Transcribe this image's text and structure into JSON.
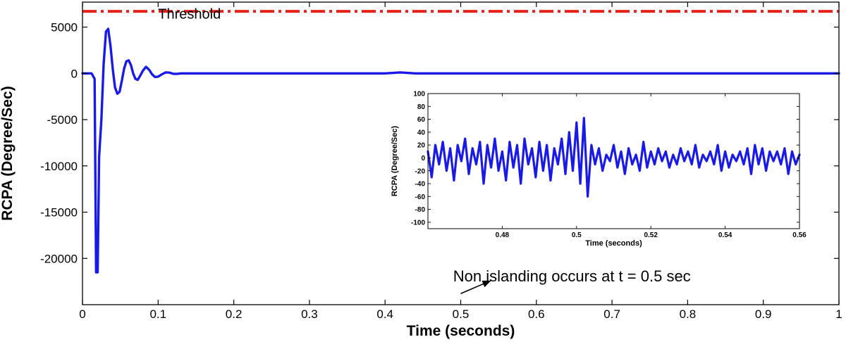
{
  "chart_data": [
    {
      "type": "line",
      "xlabel": "Time (seconds)",
      "ylabel": "RCPA (Degree/Sec)",
      "xlim": [
        0,
        1
      ],
      "ylim": [
        -25000,
        7700
      ],
      "xticks": [
        0,
        0.1,
        0.2,
        0.3,
        0.4,
        0.5,
        0.6,
        0.7,
        0.8,
        0.9,
        1
      ],
      "xtick_labels": [
        "0",
        "0.1",
        "0.2",
        "0.3",
        "0.4",
        "0.5",
        "0.6",
        "0.7",
        "0.8",
        "0.9",
        "1"
      ],
      "yticks": [
        5000,
        0,
        -5000,
        -10000,
        -15000,
        -20000
      ],
      "ytick_labels": [
        "5000",
        "0",
        "-5000",
        "-10000",
        "-15000",
        "-20000"
      ],
      "grid": false,
      "series": [
        {
          "name": "Threshold",
          "color": "#e8201a",
          "style": "dash-dot",
          "x": [
            0,
            1
          ],
          "y": [
            6700,
            6700
          ]
        },
        {
          "color": "#1a1ae6",
          "style": "solid",
          "x": [
            0,
            0.012,
            0.016,
            0.018,
            0.02,
            0.022,
            0.025,
            0.028,
            0.031,
            0.034,
            0.037,
            0.04,
            0.043,
            0.046,
            0.049,
            0.052,
            0.055,
            0.058,
            0.061,
            0.064,
            0.067,
            0.07,
            0.073,
            0.076,
            0.08,
            0.084,
            0.088,
            0.092,
            0.096,
            0.1,
            0.105,
            0.11,
            0.115,
            0.12,
            0.125,
            0.13,
            0.14,
            0.15,
            0.2,
            0.3,
            0.4,
            0.42,
            0.44,
            0.5,
            0.6,
            0.7,
            0.8,
            0.9,
            1.0
          ],
          "y": [
            0,
            0,
            -600,
            -21500,
            -21500,
            -9000,
            -5000,
            1000,
            4500,
            4800,
            3000,
            500,
            -1500,
            -2200,
            -2000,
            -800,
            500,
            1300,
            1400,
            900,
            0,
            -600,
            -700,
            -300,
            300,
            700,
            400,
            -100,
            -400,
            -350,
            -100,
            100,
            80,
            -50,
            -60,
            0,
            0,
            0,
            0,
            0,
            0,
            100,
            0,
            0,
            0,
            0,
            0,
            0,
            0
          ]
        }
      ],
      "annotations": [
        {
          "text": "Threshold",
          "x": 0.1,
          "y": 5900
        },
        {
          "text": "Non islanding occurs at t = 0.5 sec",
          "x": 0.49,
          "y": -22500
        }
      ],
      "arrow": {
        "from": [
          0.5,
          -23800
        ],
        "to": [
          0.54,
          -22400
        ]
      }
    },
    {
      "type": "line",
      "xlabel": "Time (seconds)",
      "ylabel": "RCPA (Degree/Sec)",
      "xlim": [
        0.46,
        0.56
      ],
      "ylim": [
        -110,
        100
      ],
      "xticks": [
        0.48,
        0.5,
        0.52,
        0.54,
        0.56
      ],
      "xtick_labels": [
        "0.48",
        "0.5",
        "0.52",
        "0.54",
        "0.56"
      ],
      "yticks": [
        100,
        80,
        60,
        40,
        20,
        0,
        -20,
        -40,
        -60,
        -80,
        -100
      ],
      "ytick_labels": [
        "100",
        "80",
        "60",
        "40",
        "20",
        "0",
        "-20",
        "-40",
        "-60",
        "-80",
        "-100"
      ],
      "grid": false,
      "series": [
        {
          "color": "#1a1ae6",
          "x": [
            0.46,
            0.461,
            0.462,
            0.463,
            0.464,
            0.465,
            0.466,
            0.467,
            0.468,
            0.469,
            0.47,
            0.471,
            0.472,
            0.473,
            0.474,
            0.475,
            0.476,
            0.477,
            0.478,
            0.479,
            0.48,
            0.481,
            0.482,
            0.483,
            0.484,
            0.485,
            0.486,
            0.487,
            0.488,
            0.489,
            0.49,
            0.491,
            0.492,
            0.493,
            0.494,
            0.495,
            0.496,
            0.497,
            0.498,
            0.499,
            0.5,
            0.501,
            0.502,
            0.503,
            0.504,
            0.505,
            0.506,
            0.507,
            0.508,
            0.509,
            0.51,
            0.511,
            0.512,
            0.513,
            0.514,
            0.515,
            0.516,
            0.517,
            0.518,
            0.519,
            0.52,
            0.521,
            0.522,
            0.523,
            0.524,
            0.525,
            0.526,
            0.527,
            0.528,
            0.529,
            0.53,
            0.531,
            0.532,
            0.533,
            0.534,
            0.535,
            0.536,
            0.537,
            0.538,
            0.539,
            0.54,
            0.541,
            0.542,
            0.543,
            0.544,
            0.545,
            0.546,
            0.547,
            0.548,
            0.549,
            0.55,
            0.551,
            0.552,
            0.553,
            0.554,
            0.555,
            0.556,
            0.557,
            0.558,
            0.559,
            0.56
          ],
          "y": [
            10,
            -30,
            20,
            -10,
            25,
            -20,
            15,
            -35,
            20,
            -5,
            30,
            -25,
            15,
            -10,
            25,
            -40,
            20,
            -15,
            30,
            -20,
            10,
            -35,
            25,
            -15,
            20,
            -40,
            30,
            -10,
            15,
            -30,
            25,
            -20,
            20,
            -35,
            15,
            -10,
            30,
            -25,
            40,
            -20,
            55,
            -40,
            62,
            -60,
            20,
            -10,
            15,
            -20,
            5,
            -5,
            20,
            -15,
            10,
            -25,
            15,
            -10,
            5,
            -20,
            25,
            -15,
            10,
            -10,
            15,
            -5,
            10,
            -15,
            5,
            -10,
            15,
            -5,
            10,
            -10,
            20,
            -15,
            5,
            -5,
            10,
            -10,
            20,
            -20,
            10,
            -15,
            5,
            -5,
            10,
            -10,
            15,
            -25,
            20,
            -10,
            15,
            -20,
            10,
            -5,
            10,
            -10,
            15,
            -25,
            10,
            -10,
            5
          ]
        }
      ]
    }
  ]
}
